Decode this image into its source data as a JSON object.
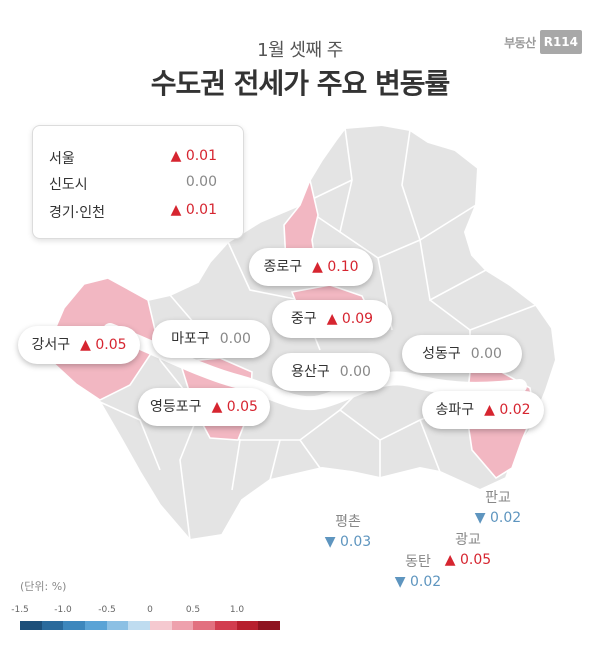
{
  "header": {
    "subtitle": "1월 셋째 주",
    "title": "수도권 전세가 주요 변동률"
  },
  "brand": {
    "text": "부동산",
    "badge": "R114"
  },
  "summary": [
    {
      "name": "서울",
      "value": "▲ 0.01",
      "trend": "up"
    },
    {
      "name": "신도시",
      "value": "0.00",
      "trend": "flat"
    },
    {
      "name": "경기·인천",
      "value": "▲ 0.01",
      "trend": "up"
    }
  ],
  "districts": [
    {
      "name": "종로구",
      "value": "▲ 0.10",
      "trend": "up"
    },
    {
      "name": "중구",
      "value": "▲ 0.09",
      "trend": "up"
    },
    {
      "name": "강서구",
      "value": "▲ 0.05",
      "trend": "up"
    },
    {
      "name": "마포구",
      "value": "0.00",
      "trend": "flat"
    },
    {
      "name": "용산구",
      "value": "0.00",
      "trend": "flat"
    },
    {
      "name": "성동구",
      "value": "0.00",
      "trend": "flat"
    },
    {
      "name": "영등포구",
      "value": "▲ 0.05",
      "trend": "up"
    },
    {
      "name": "송파구",
      "value": "▲ 0.02",
      "trend": "up"
    }
  ],
  "new_towns": [
    {
      "name": "판교",
      "value": "▼ 0.02",
      "trend": "down"
    },
    {
      "name": "광교",
      "value": "▲ 0.05",
      "trend": "up"
    },
    {
      "name": "평촌",
      "value": "▼ 0.03",
      "trend": "down"
    },
    {
      "name": "동탄",
      "value": "▼ 0.02",
      "trend": "down"
    }
  ],
  "legend": {
    "unit": "(단위: %)",
    "ticks": [
      "-1.5",
      "-1.0",
      "-0.5",
      "0",
      "0.5",
      "1.0"
    ],
    "colors": [
      "#1c4f7a",
      "#2a6a9c",
      "#3d87bd",
      "#5aa3d6",
      "#8cc0e4",
      "#bfdcf0",
      "#f5c9d0",
      "#eea1ad",
      "#e2707f",
      "#d23d4f",
      "#b71f2e",
      "#8e1320"
    ]
  },
  "colors": {
    "increase": "#d62530",
    "decrease": "#5e95bf",
    "flat": "#888888",
    "highlight_region": "#f2b7c2",
    "base_region": "#e4e4e4",
    "river": "#ffffff"
  }
}
